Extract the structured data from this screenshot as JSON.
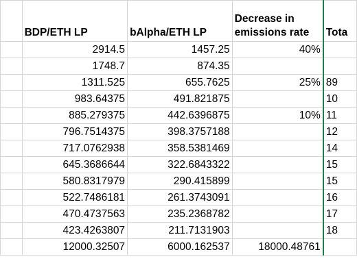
{
  "headers": {
    "bdp": "BDP/ETH LP",
    "balpha": "bAlpha/ETH LP",
    "decrease": "Decrease in emissions rate",
    "total": "Tota"
  },
  "rows": [
    {
      "bdp": "2914.5",
      "balpha": "1457.25",
      "decrease": "40%",
      "total": ""
    },
    {
      "bdp": "1748.7",
      "balpha": "874.35",
      "decrease": "",
      "total": ""
    },
    {
      "bdp": "1311.525",
      "balpha": "655.7625",
      "decrease": "25%",
      "total": "89"
    },
    {
      "bdp": "983.64375",
      "balpha": "491.821875",
      "decrease": "",
      "total": "10"
    },
    {
      "bdp": "885.279375",
      "balpha": "442.6396875",
      "decrease": "10%",
      "total": "11"
    },
    {
      "bdp": "796.7514375",
      "balpha": "398.3757188",
      "decrease": "",
      "total": "12"
    },
    {
      "bdp": "717.0762938",
      "balpha": "358.5381469",
      "decrease": "",
      "total": "14"
    },
    {
      "bdp": "645.3686644",
      "balpha": "322.6843322",
      "decrease": "",
      "total": "15"
    },
    {
      "bdp": "580.8317979",
      "balpha": "290.415899",
      "decrease": "",
      "total": "15"
    },
    {
      "bdp": "522.7486181",
      "balpha": "261.3743091",
      "decrease": "",
      "total": "16"
    },
    {
      "bdp": "470.4737563",
      "balpha": "235.2368782",
      "decrease": "",
      "total": "17"
    },
    {
      "bdp": "423.4263807",
      "balpha": "211.7131903",
      "decrease": "",
      "total": "18"
    },
    {
      "bdp": "12000.32507",
      "balpha": "6000.162537",
      "decrease": "18000.48761",
      "total": ""
    }
  ]
}
